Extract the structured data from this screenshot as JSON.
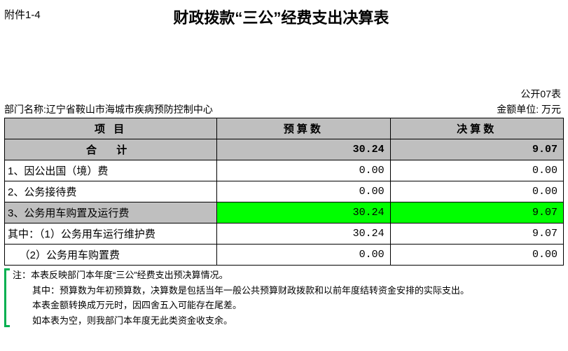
{
  "header": {
    "attachment_label": "附件1-4",
    "title": "财政拨款“三公”经费支出决算表"
  },
  "meta": {
    "form_code": "公开07表",
    "dept_label": "部门名称:",
    "dept_name": "辽宁省鞍山市海城市疾病预防控制中心",
    "unit_label": "金额单位: 万元"
  },
  "table": {
    "headers": {
      "item": "项 目",
      "budget": "预算数",
      "final": "决算数"
    },
    "sum_label": "合 计",
    "sum_budget": "30.24",
    "sum_final": "9.07",
    "rows": [
      {
        "item": "1、因公出国（境）费",
        "budget": "0.00",
        "final": "0.00",
        "hl": false
      },
      {
        "item": "2、公务接待费",
        "budget": "0.00",
        "final": "0.00",
        "hl": false
      },
      {
        "item": "3、公务用车购置及运行费",
        "budget": "30.24",
        "final": "9.07",
        "hl": true
      },
      {
        "item": "其中：（1）公务用车运行维护费",
        "budget": "30.24",
        "final": "9.07",
        "hl": false
      },
      {
        "item": "    （2）公务用车购置费",
        "budget": "0.00",
        "final": "0.00",
        "hl": false
      }
    ]
  },
  "notes": {
    "line1": "注：本表反映部门本年度“三公”经费支出预决算情况。",
    "line2": "其中：预算数为年初预算数，决算数是包括当年一般公共预算财政拨款和以前年度结转资金安排的实际支出。",
    "line3": "本表金额转换成万元时，因四舍五入可能存在尾差。",
    "line4": "如本表为空，则我部门本年度无此类资金收支余。"
  },
  "style": {
    "header_bg": "#bfbfbf",
    "highlight_bg": "#00ff00",
    "marker_color": "#00b050"
  }
}
